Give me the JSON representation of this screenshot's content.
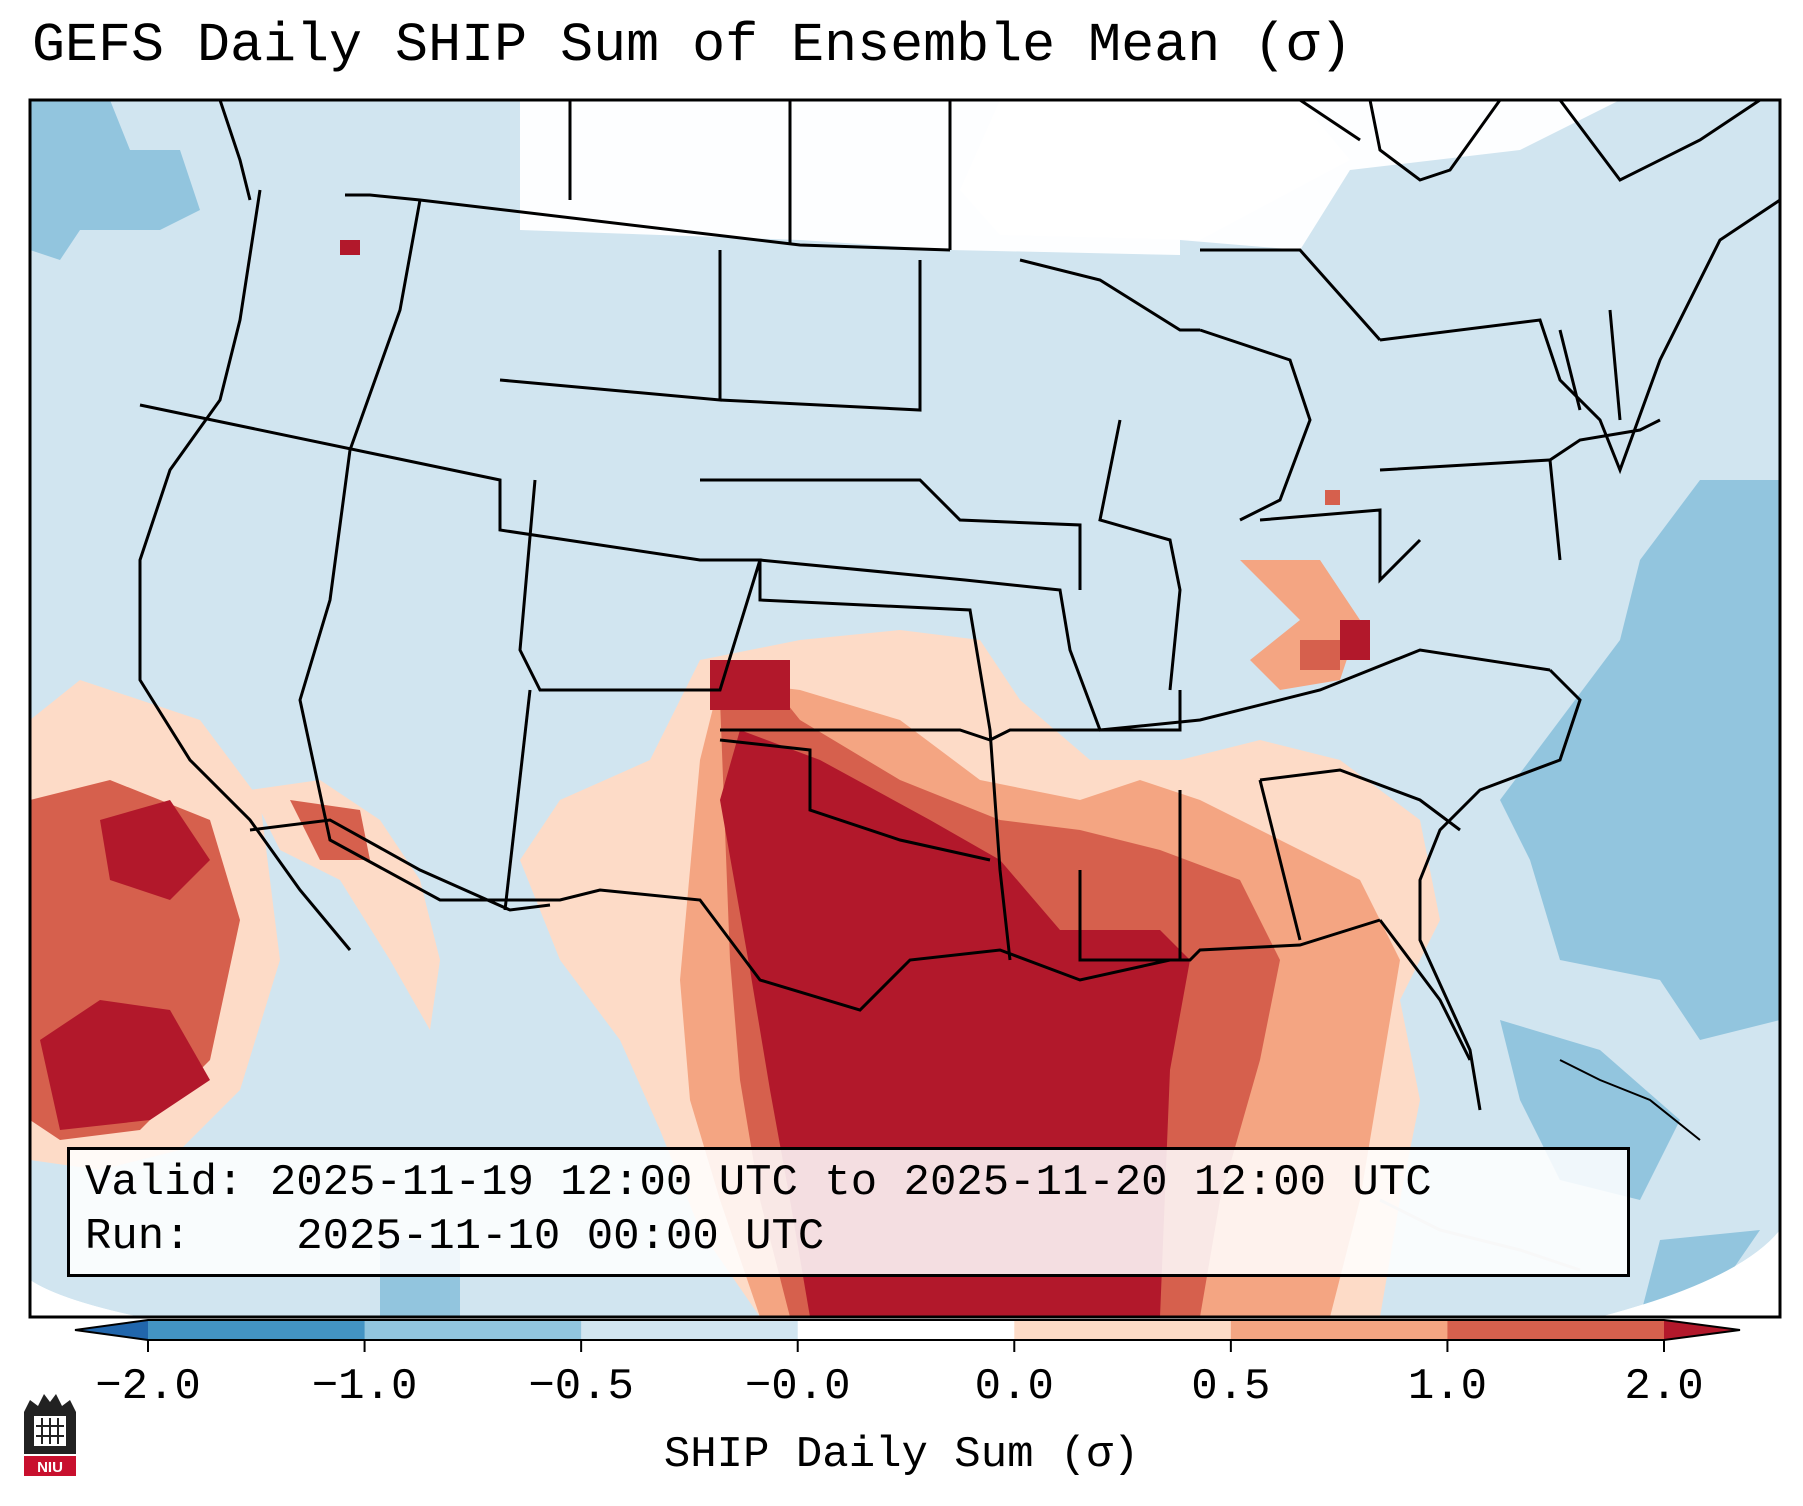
{
  "title": "GEFS Daily SHIP Sum of Ensemble Mean (σ)",
  "info": {
    "valid_label": "Valid:",
    "valid_value": "2025-11-19 12:00 UTC to 2025-11-20 12:00 UTC",
    "run_label": "Run:",
    "run_value": "2025-11-10 00:00 UTC"
  },
  "colorbar": {
    "label": "SHIP Daily Sum (σ)",
    "ticks": [
      "−2.0",
      "−1.0",
      "−0.5",
      "−0.0",
      "0.0",
      "0.5",
      "1.0",
      "2.0"
    ],
    "bins": [
      {
        "range": "< -2.0",
        "color": "#2166ac"
      },
      {
        "range": "-2.0 to -1.0",
        "color": "#4393c3"
      },
      {
        "range": "-1.0 to -0.5",
        "color": "#92c5de"
      },
      {
        "range": "-0.5 to -0.0",
        "color": "#d1e5f0"
      },
      {
        "range": "-0.0 to 0.0",
        "color": "#ffffff"
      },
      {
        "range": "0.0 to 0.5",
        "color": "#fddbc7"
      },
      {
        "range": "0.5 to 1.0",
        "color": "#f4a582"
      },
      {
        "range": "1.0 to 2.0",
        "color": "#d6604d"
      },
      {
        "range": "> 2.0",
        "color": "#b2182b"
      }
    ]
  },
  "regions": [
    {
      "name": "southern-plains-gulf-coast",
      "level": "> 2.0",
      "color": "#b2182b"
    },
    {
      "name": "eastern-pacific-offshore",
      "level": "1.0 to 2.0",
      "color": "#d6604d"
    },
    {
      "name": "southeast-us",
      "level": "0.5 to 1.0",
      "color": "#f4a582"
    },
    {
      "name": "western-atlantic",
      "level": "-1.0 to -0.5",
      "color": "#92c5de"
    },
    {
      "name": "northern-canada",
      "level": "-0.0 to 0.0",
      "color": "#ffffff"
    }
  ],
  "logo": {
    "text": "NIU"
  }
}
